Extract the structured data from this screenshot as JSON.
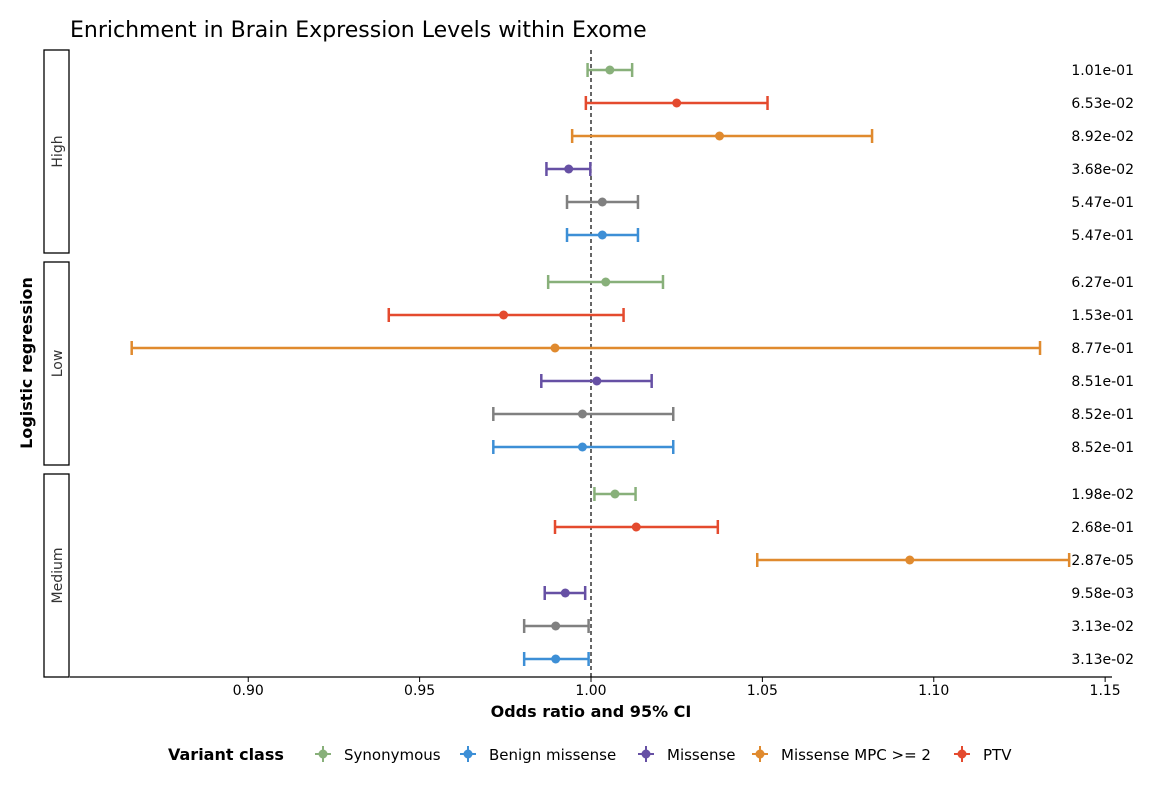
{
  "chart_data": {
    "type": "forest",
    "title": "Enrichment in Brain Expression Levels within Exome",
    "xlabel": "Odds ratio and 95% CI",
    "ylabel": "Logistic regression",
    "xlim": [
      0.848,
      1.152
    ],
    "xticks": [
      0.9,
      0.95,
      1.0,
      1.05,
      1.1,
      1.15
    ],
    "xtick_labels": [
      "0.90",
      "0.95",
      "1.00",
      "1.05",
      "1.10",
      "1.15"
    ],
    "reference_line": 1.0,
    "grid": false,
    "legend": {
      "title": "Variant class",
      "placement": "bottom",
      "entries": [
        {
          "name": "Synonymous",
          "color": "#88b07a"
        },
        {
          "name": "Benign missense",
          "color": "#3d8fd6"
        },
        {
          "name": "Missense",
          "color": "#6650a4"
        },
        {
          "name": "Missense MPC >= 2",
          "color": "#e08a2e"
        },
        {
          "name": "PTV",
          "color": "#e44a2e"
        }
      ]
    },
    "panels": [
      {
        "label": "High",
        "rows": [
          {
            "class": "Synonymous",
            "or": 1.0055,
            "lo": 0.999,
            "hi": 1.012,
            "p": "1.01e-01"
          },
          {
            "class": "PTV",
            "or": 1.025,
            "lo": 0.9985,
            "hi": 1.0515,
            "p": "6.53e-02"
          },
          {
            "class": "Missense MPC >= 2",
            "or": 1.0375,
            "lo": 0.9945,
            "hi": 1.082,
            "p": "8.92e-02"
          },
          {
            "class": "Missense",
            "or": 0.9935,
            "lo": 0.987,
            "hi": 0.9998,
            "p": "3.68e-02"
          },
          {
            "class": "Gray",
            "or": 1.0033,
            "lo": 0.993,
            "hi": 1.0137,
            "p": "5.47e-01"
          },
          {
            "class": "Benign missense",
            "or": 1.0033,
            "lo": 0.993,
            "hi": 1.0137,
            "p": "5.47e-01"
          }
        ]
      },
      {
        "label": "Low",
        "rows": [
          {
            "class": "Synonymous",
            "or": 1.0043,
            "lo": 0.9875,
            "hi": 1.021,
            "p": "6.27e-01"
          },
          {
            "class": "PTV",
            "or": 0.9745,
            "lo": 0.941,
            "hi": 1.0095,
            "p": "1.53e-01"
          },
          {
            "class": "Missense MPC >= 2",
            "or": 0.9895,
            "lo": 0.866,
            "hi": 1.131,
            "p": "8.77e-01"
          },
          {
            "class": "Missense",
            "or": 1.0017,
            "lo": 0.9855,
            "hi": 1.0177,
            "p": "8.51e-01"
          },
          {
            "class": "Gray",
            "or": 0.9975,
            "lo": 0.9715,
            "hi": 1.024,
            "p": "8.52e-01"
          },
          {
            "class": "Benign missense",
            "or": 0.9975,
            "lo": 0.9715,
            "hi": 1.024,
            "p": "8.52e-01"
          }
        ]
      },
      {
        "label": "Medium",
        "rows": [
          {
            "class": "Synonymous",
            "or": 1.007,
            "lo": 1.001,
            "hi": 1.013,
            "p": "1.98e-02"
          },
          {
            "class": "PTV",
            "or": 1.0132,
            "lo": 0.9895,
            "hi": 1.037,
            "p": "2.68e-01"
          },
          {
            "class": "Missense MPC >= 2",
            "or": 1.093,
            "lo": 1.0485,
            "hi": 1.1395,
            "p": "2.87e-05"
          },
          {
            "class": "Missense",
            "or": 0.9925,
            "lo": 0.9865,
            "hi": 0.9983,
            "p": "9.58e-03"
          },
          {
            "class": "Gray",
            "or": 0.9897,
            "lo": 0.9805,
            "hi": 0.9993,
            "p": "3.13e-02"
          },
          {
            "class": "Benign missense",
            "or": 0.9897,
            "lo": 0.9805,
            "hi": 0.9993,
            "p": "3.13e-02"
          }
        ]
      }
    ],
    "colors": {
      "Synonymous": "#88b07a",
      "Benign missense": "#3d8fd6",
      "Missense": "#6650a4",
      "Missense MPC >= 2": "#e08a2e",
      "PTV": "#e44a2e",
      "Gray": "#808080"
    }
  }
}
